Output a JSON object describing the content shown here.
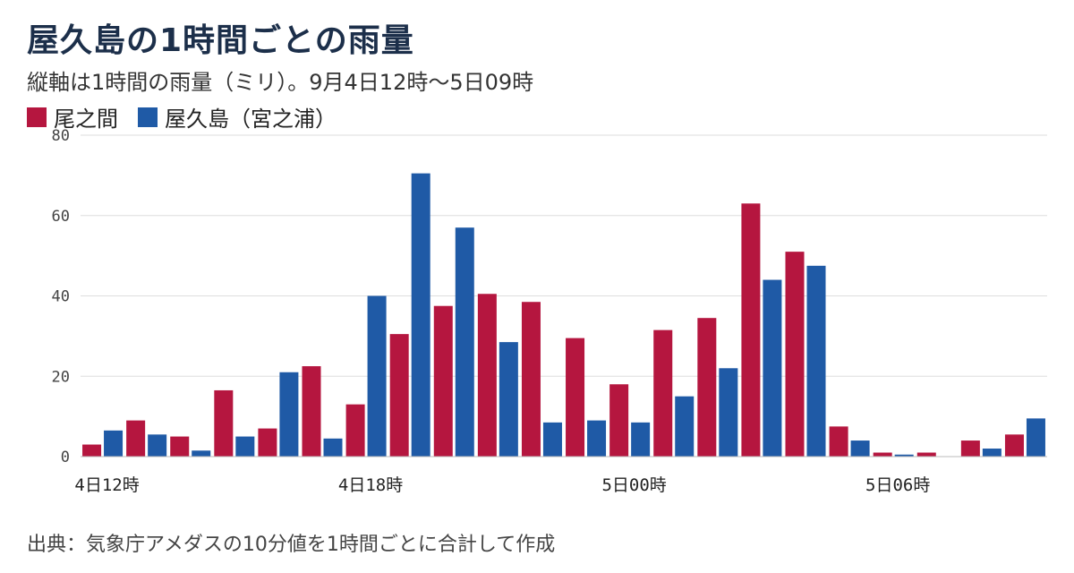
{
  "title": "屋久島の1時間ごとの雨量",
  "subtitle": "縦軸は1時間の雨量（ミリ）。9月4日12時～5日09時",
  "source": "出典：気象庁アメダスの10分値を1時間ごとに合計して作成",
  "colors": {
    "onoaida": "#b5163f",
    "yakushima": "#1f5aa6",
    "grid": "#dddddd"
  },
  "chart_data": {
    "type": "bar",
    "title": "屋久島の1時間ごとの雨量",
    "subtitle": "縦軸は1時間の雨量（ミリ）。9月4日12時～5日09時",
    "categories": [
      "4日12時",
      "4日13時",
      "4日14時",
      "4日15時",
      "4日16時",
      "4日17時",
      "4日18時",
      "4日19時",
      "4日20時",
      "4日21時",
      "4日22時",
      "4日23時",
      "5日00時",
      "5日01時",
      "5日02時",
      "5日03時",
      "5日04時",
      "5日05時",
      "5日06時",
      "5日07時",
      "5日08時",
      "5日09時"
    ],
    "x_tick_labels": [
      {
        "index": 0,
        "label": "4日12時"
      },
      {
        "index": 6,
        "label": "4日18時"
      },
      {
        "index": 12,
        "label": "5日00時"
      },
      {
        "index": 18,
        "label": "5日06時"
      }
    ],
    "series": [
      {
        "name": "尾之間",
        "values": [
          3,
          9,
          5,
          16.5,
          7,
          22.5,
          13,
          30.5,
          37.5,
          40.5,
          38.5,
          29.5,
          18,
          31.5,
          34.5,
          63,
          51,
          7.5,
          1,
          1,
          4,
          5.5
        ]
      },
      {
        "name": "屋久島（宮之浦）",
        "values": [
          6.5,
          5.5,
          1.5,
          5,
          21,
          4.5,
          40,
          70.5,
          57,
          28.5,
          8.5,
          9,
          8.5,
          15,
          22,
          44,
          47.5,
          4,
          0.5,
          0,
          2,
          9.5
        ]
      }
    ],
    "y_ticks": [
      0,
      20,
      40,
      60,
      80
    ],
    "ylim": [
      0,
      80
    ],
    "grid": true,
    "legend_position": "top-left"
  }
}
